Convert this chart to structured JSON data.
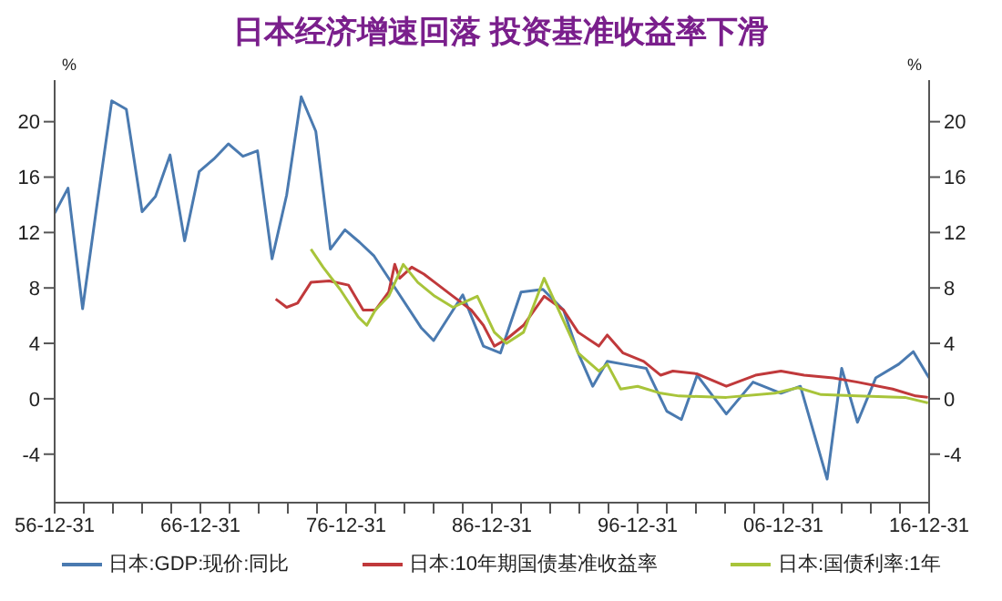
{
  "chart_data": {
    "type": "line",
    "title": "日本经济增速回落 投资基准收益率下滑",
    "ylabel": "%",
    "y2label": "%",
    "xlim": [
      "1956-12-31",
      "2016-12-31"
    ],
    "xticks": [
      {
        "value": "1956-12-31",
        "label": "56-12-31"
      },
      {
        "value": "1958-12-31",
        "label": null
      },
      {
        "value": "1960-12-31",
        "label": null
      },
      {
        "value": "1962-12-31",
        "label": null
      },
      {
        "value": "1964-12-31",
        "label": null
      },
      {
        "value": "1966-12-31",
        "label": "66-12-31"
      },
      {
        "value": "1968-12-31",
        "label": null
      },
      {
        "value": "1970-12-31",
        "label": null
      },
      {
        "value": "1972-12-31",
        "label": null
      },
      {
        "value": "1974-12-31",
        "label": null
      },
      {
        "value": "1976-12-31",
        "label": "76-12-31"
      },
      {
        "value": "1978-12-31",
        "label": null
      },
      {
        "value": "1980-12-31",
        "label": null
      },
      {
        "value": "1982-12-31",
        "label": null
      },
      {
        "value": "1984-12-31",
        "label": null
      },
      {
        "value": "1986-12-31",
        "label": "86-12-31"
      },
      {
        "value": "1988-12-31",
        "label": null
      },
      {
        "value": "1990-12-31",
        "label": null
      },
      {
        "value": "1992-12-31",
        "label": null
      },
      {
        "value": "1994-12-31",
        "label": null
      },
      {
        "value": "1996-12-31",
        "label": "96-12-31"
      },
      {
        "value": "1998-12-31",
        "label": null
      },
      {
        "value": "2000-12-31",
        "label": null
      },
      {
        "value": "2002-12-31",
        "label": null
      },
      {
        "value": "2004-12-31",
        "label": null
      },
      {
        "value": "2006-12-31",
        "label": "06-12-31"
      },
      {
        "value": "2008-12-31",
        "label": null
      },
      {
        "value": "2010-12-31",
        "label": null
      },
      {
        "value": "2012-12-31",
        "label": null
      },
      {
        "value": "2014-12-31",
        "label": null
      },
      {
        "value": "2016-12-31",
        "label": "16-12-31"
      }
    ],
    "ylim": [
      -7.5,
      23
    ],
    "yticks": [
      -4,
      0,
      4,
      8,
      12,
      16,
      20
    ],
    "y2lim": [
      -7.5,
      23
    ],
    "y2ticks": [
      -4,
      0,
      4,
      8,
      12,
      16,
      20
    ],
    "grid": false,
    "legend": "bottom",
    "marker": "none",
    "line_style": "solid",
    "series": [
      {
        "name": "日本:GDP:现价:同比",
        "color": "#4a7ab0",
        "x": [
          "1957-01",
          "1957-12",
          "1958-12",
          "1959-12",
          "1960-12",
          "1961-12",
          "1963-01",
          "1963-12",
          "1964-12",
          "1965-12",
          "1966-12",
          "1967-12",
          "1968-12",
          "1969-12",
          "1970-12",
          "1971-12",
          "1972-12",
          "1973-12",
          "1974-12",
          "1975-12",
          "1976-12",
          "1977-12",
          "1978-12",
          "1979-12",
          "1982-03",
          "1983-01",
          "1985-01",
          "1986-06",
          "1987-08",
          "1989-01",
          "1990-07",
          "1991-12",
          "1992-12",
          "1993-12",
          "1994-12",
          "1996-01",
          "1997-08",
          "1999-01",
          "2000-01",
          "2001-02",
          "2003-02",
          "2004-12",
          "2006-11",
          "2008-03",
          "2010-01",
          "2011-01",
          "2012-02",
          "2013-05",
          "2014-12",
          "2015-12",
          "2016-12-31"
        ],
        "values": [
          13.4,
          15.2,
          6.5,
          14.1,
          21.5,
          20.9,
          13.5,
          14.6,
          17.6,
          11.4,
          16.4,
          17.3,
          18.4,
          17.5,
          17.9,
          10.1,
          14.7,
          21.8,
          19.3,
          10.8,
          12.2,
          11.3,
          10.3,
          8.7,
          5.1,
          4.2,
          7.5,
          3.8,
          3.3,
          7.7,
          7.9,
          6.4,
          3.3,
          0.9,
          2.7,
          2.5,
          2.2,
          -0.9,
          -1.5,
          1.7,
          -1.1,
          1.2,
          0.4,
          0.9,
          -5.8,
          2.2,
          -1.7,
          1.5,
          2.5,
          3.4,
          1.5
        ]
      },
      {
        "name": "日本:10年期国债基准收益率",
        "color": "#c0393b",
        "x": [
          "1972-03",
          "1972-12",
          "1973-09",
          "1974-08",
          "1975-11",
          "1977-03",
          "1978-03",
          "1979-01",
          "1979-12",
          "1980-05",
          "1980-09",
          "1981-07",
          "1982-05",
          "1983-02",
          "1984-05",
          "1985-08",
          "1986-06",
          "1987-03",
          "1988-01",
          "1989-03",
          "1990-08",
          "1991-12",
          "1992-12",
          "1994-05",
          "1994-12",
          "1996-01",
          "1997-06",
          "1998-08",
          "1999-06",
          "2001-02",
          "2003-02",
          "2005-02",
          "2006-11",
          "2008-06",
          "2010-06",
          "2012-02",
          "2014-07",
          "2016-02",
          "2016-12"
        ],
        "values": [
          7.2,
          6.6,
          6.9,
          8.4,
          8.5,
          8.2,
          6.4,
          6.4,
          7.7,
          9.7,
          8.7,
          9.5,
          9,
          8.4,
          7.4,
          6.4,
          5.3,
          3.8,
          4.3,
          5.3,
          7.4,
          6.4,
          4.8,
          3.8,
          4.6,
          3.3,
          2.7,
          1.7,
          2,
          1.8,
          0.9,
          1.7,
          2,
          1.7,
          1.5,
          1.2,
          0.7,
          0.2,
          0.1
        ]
      },
      {
        "name": "日本:国债利率:1年",
        "color": "#a8c43a",
        "x": [
          "1974-08",
          "1975-06",
          "1976-08",
          "1977-11",
          "1978-06",
          "1979-01",
          "1979-12",
          "1980-12",
          "1981-12",
          "1983-02",
          "1984-05",
          "1986-01",
          "1987-03",
          "1988-01",
          "1989-03",
          "1990-08",
          "1991-08",
          "1992-12",
          "1994-05",
          "1994-12",
          "1995-11",
          "1997-01",
          "1998-08",
          "1999-11",
          "2003-02",
          "2006-06",
          "2008-01",
          "2009-08",
          "2012-02",
          "2015-05",
          "2016-12"
        ],
        "values": [
          10.8,
          9.5,
          7.9,
          5.9,
          5.3,
          6.4,
          7.4,
          9.7,
          8.4,
          7.4,
          6.6,
          7.4,
          4.8,
          4,
          4.8,
          8.7,
          6.4,
          3.3,
          2,
          2.5,
          0.7,
          0.9,
          0.4,
          0.2,
          0.1,
          0.4,
          0.8,
          0.3,
          0.2,
          0.1,
          -0.3
        ]
      }
    ]
  }
}
